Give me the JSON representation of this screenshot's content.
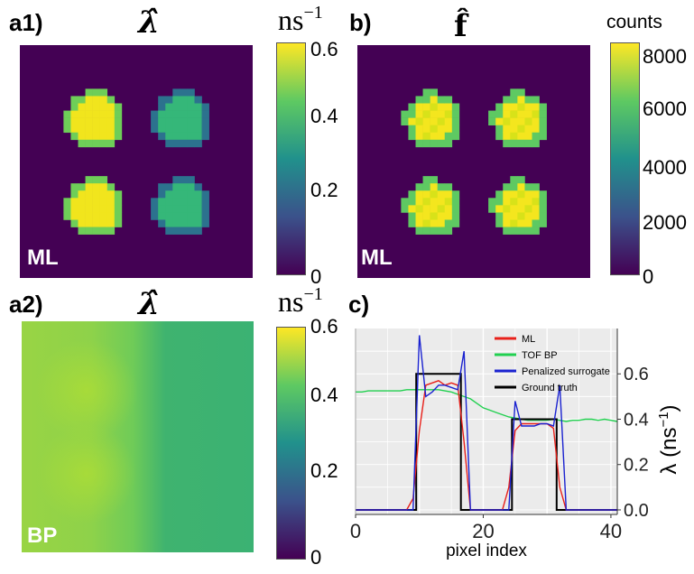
{
  "panels": {
    "a1": {
      "label": "a1)",
      "symbol": "λ̂",
      "unit_base": "ns",
      "unit_exp": "−1",
      "tag": "ML",
      "colorbar_ticks": [
        "0.6",
        "0.4",
        "0.2",
        "0"
      ]
    },
    "b": {
      "label": "b)",
      "symbol": "f̂",
      "unit": "counts",
      "tag": "ML",
      "colorbar_ticks": [
        "8000",
        "6000",
        "4000",
        "2000",
        "0"
      ]
    },
    "a2": {
      "label": "a2)",
      "symbol": "λ̂",
      "unit_base": "ns",
      "unit_exp": "−1",
      "tag": "BP",
      "colorbar_ticks": [
        "0.6",
        "0.4",
        "0.2",
        "0"
      ]
    },
    "c": {
      "label": "c)"
    }
  },
  "colors": {
    "viridis": [
      "#440154",
      "#3b528b",
      "#21918c",
      "#5ec962",
      "#fde725"
    ],
    "ml": "#e8201a",
    "tof_bp": "#22d050",
    "penalized": "#1a22d0",
    "ground_truth": "#000000",
    "plot_bg": "#ebebeb"
  },
  "chart_data": {
    "type": "line",
    "title": "",
    "xlabel": "pixel index",
    "ylabel": "λ (ns",
    "ylabel_exp": "−1",
    "ylabel_close": ")",
    "xlim": [
      0,
      41
    ],
    "ylim": [
      -0.02,
      0.8
    ],
    "xticks": [
      0,
      20,
      40
    ],
    "xtick_labels": [
      "0",
      "20",
      "40"
    ],
    "yticks": [
      0.0,
      0.2,
      0.4,
      0.6
    ],
    "ytick_labels": [
      "0.0",
      "0.2",
      "0.4",
      "0.6"
    ],
    "legend_position": "top-right",
    "series": [
      {
        "name": "ML",
        "color_key": "ml",
        "x": [
          0,
          1,
          2,
          3,
          4,
          5,
          6,
          7,
          8,
          9,
          10,
          11,
          12,
          13,
          14,
          15,
          16,
          17,
          18,
          19,
          20,
          21,
          22,
          23,
          24,
          25,
          26,
          27,
          28,
          29,
          30,
          31,
          32,
          33,
          34,
          35,
          36,
          37,
          38,
          39,
          40,
          41
        ],
        "y": [
          0,
          0,
          0,
          0,
          0,
          0,
          0,
          0,
          0,
          0.05,
          0.35,
          0.55,
          0.56,
          0.57,
          0.55,
          0.56,
          0.55,
          0.3,
          0,
          0,
          0,
          0,
          0,
          0,
          0.1,
          0.35,
          0.38,
          0.38,
          0.38,
          0.38,
          0.38,
          0.36,
          0.1,
          0,
          0,
          0,
          0,
          0,
          0,
          0,
          0,
          0
        ]
      },
      {
        "name": "TOF BP",
        "color_key": "tof_bp",
        "x": [
          0,
          1,
          2,
          3,
          4,
          5,
          6,
          7,
          8,
          9,
          10,
          11,
          12,
          13,
          14,
          15,
          16,
          17,
          18,
          19,
          20,
          21,
          22,
          23,
          24,
          25,
          26,
          27,
          28,
          29,
          30,
          31,
          32,
          33,
          34,
          35,
          36,
          37,
          38,
          39,
          40,
          41
        ],
        "y": [
          0.52,
          0.52,
          0.525,
          0.525,
          0.525,
          0.525,
          0.525,
          0.525,
          0.53,
          0.53,
          0.53,
          0.53,
          0.53,
          0.53,
          0.525,
          0.52,
          0.51,
          0.5,
          0.49,
          0.47,
          0.45,
          0.44,
          0.43,
          0.42,
          0.41,
          0.405,
          0.4,
          0.395,
          0.395,
          0.395,
          0.395,
          0.4,
          0.395,
          0.39,
          0.395,
          0.395,
          0.4,
          0.4,
          0.395,
          0.4,
          0.395,
          0.39
        ]
      },
      {
        "name": "Penalized surrogate",
        "color_key": "penalized",
        "x": [
          0,
          1,
          2,
          3,
          4,
          5,
          6,
          7,
          8,
          9,
          10,
          11,
          12,
          13,
          14,
          15,
          16,
          17,
          18,
          19,
          20,
          21,
          22,
          23,
          24,
          25,
          26,
          27,
          28,
          29,
          30,
          31,
          32,
          33,
          34,
          35,
          36,
          37,
          38,
          39,
          40,
          41
        ],
        "y": [
          0,
          0,
          0,
          0,
          0,
          0,
          0,
          0,
          0,
          0,
          0.77,
          0.5,
          0.52,
          0.55,
          0.55,
          0.54,
          0.53,
          0.7,
          0,
          0,
          0,
          0,
          0,
          0,
          0,
          0.48,
          0.37,
          0.37,
          0.37,
          0.38,
          0.38,
          0.37,
          0.55,
          0,
          0,
          0,
          0,
          0,
          0,
          0,
          0,
          0
        ]
      },
      {
        "name": "Ground truth",
        "color_key": "ground_truth",
        "x": [
          0,
          9.5,
          9.5,
          16.5,
          16.5,
          24.5,
          24.5,
          31.5,
          31.5,
          41
        ],
        "y": [
          0,
          0,
          0.6,
          0.6,
          0,
          0,
          0.4,
          0.4,
          0,
          0
        ]
      }
    ]
  }
}
